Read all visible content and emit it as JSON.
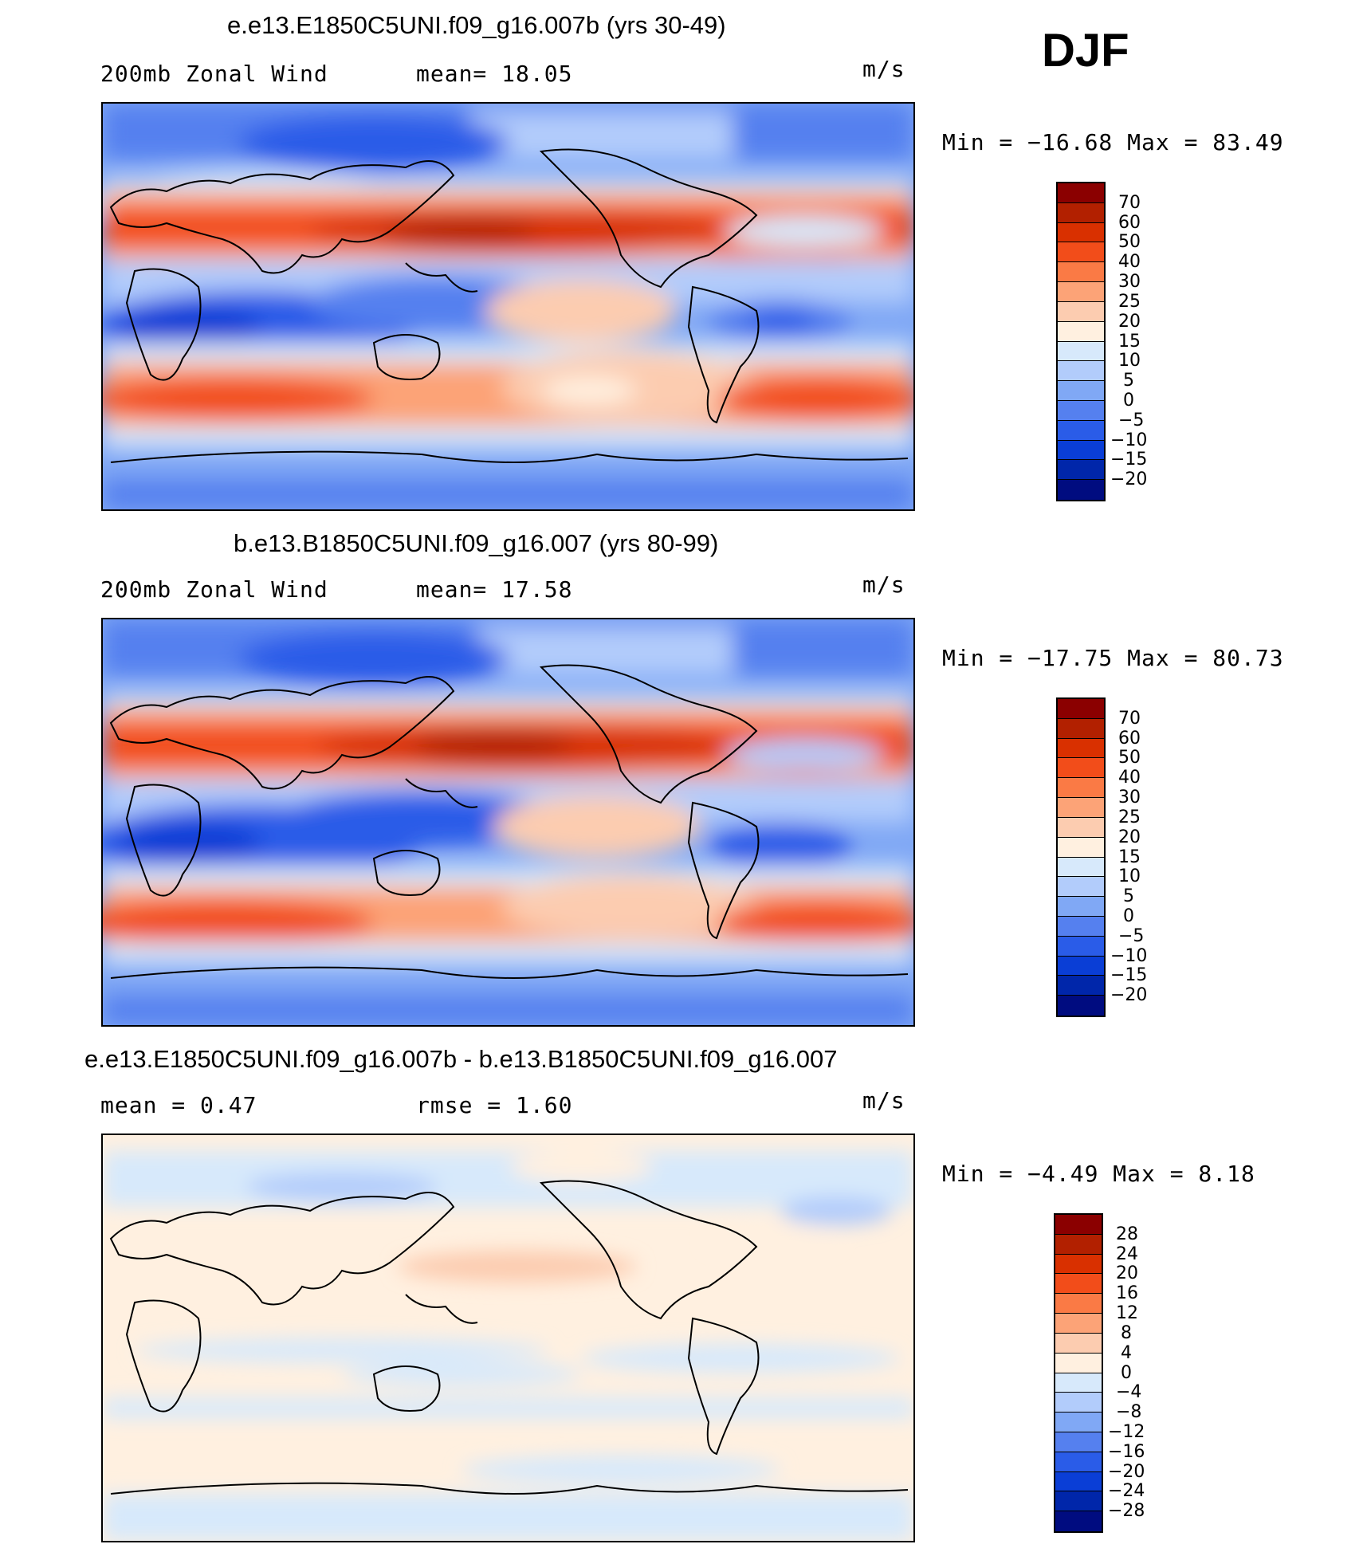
{
  "season": "DJF",
  "units": "m/s",
  "panels": [
    {
      "id": "top",
      "title": "e.e13.E1850C5UNI.f09_g16.007b (yrs 30-49)",
      "label_left": "200mb  Zonal Wind",
      "label_mid": "mean=   18.05",
      "units": "m/s",
      "minmax": "Min  =  −16.68  Max  =    83.49",
      "colorbar": {
        "colors": [
          "#8b0000",
          "#b22000",
          "#d93000",
          "#f24d1a",
          "#fa7a45",
          "#fca377",
          "#fcccb0",
          "#fff0e0",
          "#d7e9fb",
          "#b2ccfb",
          "#80a8f5",
          "#5580ef",
          "#2a5ce8",
          "#0a3ed6",
          "#0026aa",
          "#000c80"
        ],
        "labels": [
          "70",
          "60",
          "50",
          "40",
          "30",
          "25",
          "20",
          "15",
          "10",
          "5",
          "0",
          "−5",
          "−10",
          "−15",
          "−20"
        ]
      }
    },
    {
      "id": "middle",
      "title": "b.e13.B1850C5UNI.f09_g16.007 (yrs 80-99)",
      "label_left": "200mb  Zonal Wind",
      "label_mid": "mean=   17.58",
      "units": "m/s",
      "minmax": "Min  =  −17.75  Max  =    80.73",
      "colorbar": {
        "colors": [
          "#8b0000",
          "#b22000",
          "#d93000",
          "#f24d1a",
          "#fa7a45",
          "#fca377",
          "#fcccb0",
          "#fff0e0",
          "#d7e9fb",
          "#b2ccfb",
          "#80a8f5",
          "#5580ef",
          "#2a5ce8",
          "#0a3ed6",
          "#0026aa",
          "#000c80"
        ],
        "labels": [
          "70",
          "60",
          "50",
          "40",
          "30",
          "25",
          "20",
          "15",
          "10",
          "5",
          "0",
          "−5",
          "−10",
          "−15",
          "−20"
        ]
      }
    },
    {
      "id": "bottom",
      "title": "e.e13.E1850C5UNI.f09_g16.007b - b.e13.B1850C5UNI.f09_g16.007",
      "label_left": "mean  =     0.47",
      "label_mid": "rmse  =     1.60",
      "units": "m/s",
      "minmax": "Min  =    −4.49  Max  =     8.18",
      "colorbar": {
        "colors": [
          "#8b0000",
          "#b22000",
          "#d93000",
          "#f24d1a",
          "#fa7a45",
          "#fca377",
          "#fcccb0",
          "#fff0e0",
          "#d7e9fb",
          "#b2ccfb",
          "#80a8f5",
          "#5580ef",
          "#2a5ce8",
          "#0a3ed6",
          "#0026aa",
          "#000c80"
        ],
        "labels": [
          "28",
          "24",
          "20",
          "16",
          "12",
          "8",
          "4",
          "0",
          "−4",
          "−8",
          "−12",
          "−16",
          "−20",
          "−24",
          "−28"
        ]
      }
    }
  ]
}
